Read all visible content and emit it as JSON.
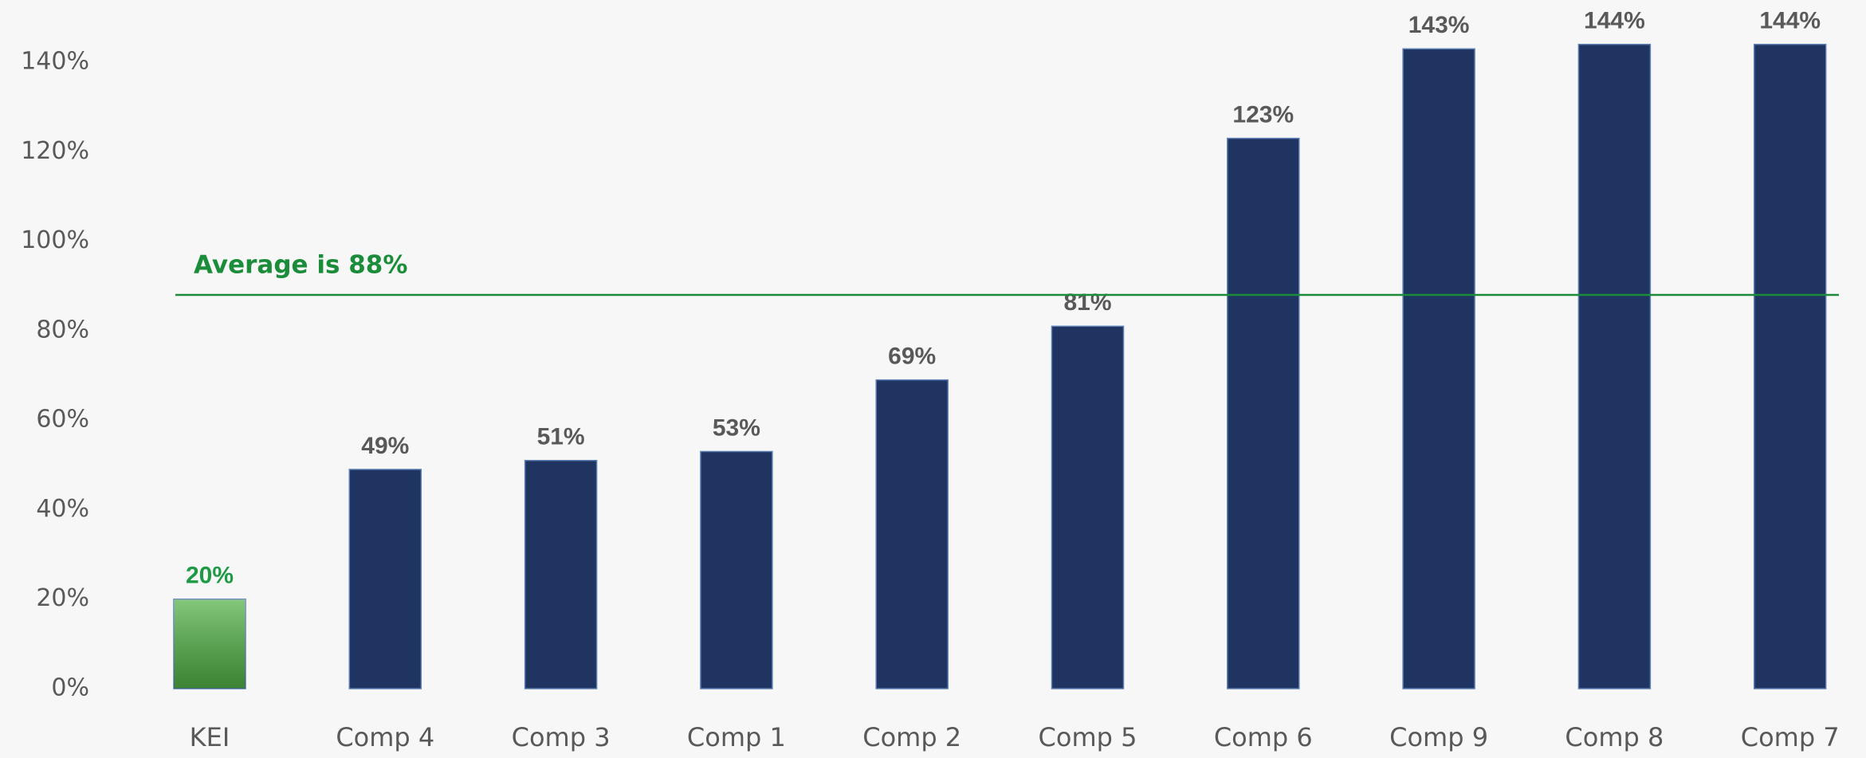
{
  "chart_data": {
    "type": "bar",
    "categories": [
      "KEI",
      "Comp 4",
      "Comp 3",
      "Comp 1",
      "Comp 2",
      "Comp 5",
      "Comp 6",
      "Comp 9",
      "Comp 8",
      "Comp 7"
    ],
    "values": [
      20,
      49,
      51,
      53,
      69,
      81,
      123,
      143,
      144,
      144
    ],
    "value_labels": [
      "20%",
      "49%",
      "51%",
      "53%",
      "69%",
      "81%",
      "123%",
      "143%",
      "144%",
      "144%"
    ],
    "colors": [
      "#4fb044",
      "#1f3461",
      "#1f3461",
      "#1f3461",
      "#1f3461",
      "#1f3461",
      "#1f3461",
      "#1f3461",
      "#1f3461",
      "#1f3461"
    ],
    "value_label_colors": [
      "#1e9a45",
      "#595959",
      "#595959",
      "#595959",
      "#595959",
      "#595959",
      "#595959",
      "#595959",
      "#595959",
      "#595959"
    ],
    "ylim": [
      0,
      150
    ],
    "yticks": [
      {
        "value": 0,
        "label": "0%"
      },
      {
        "value": 20,
        "label": "20%"
      },
      {
        "value": 40,
        "label": "40%"
      },
      {
        "value": 60,
        "label": "60%"
      },
      {
        "value": 80,
        "label": "80%"
      },
      {
        "value": 100,
        "label": "100%"
      },
      {
        "value": 120,
        "label": "120%"
      },
      {
        "value": 140,
        "label": "140%"
      }
    ],
    "grid": false,
    "reference_line": {
      "value": 88,
      "label": "Average is 88%",
      "color": "#1a8c3a"
    }
  }
}
